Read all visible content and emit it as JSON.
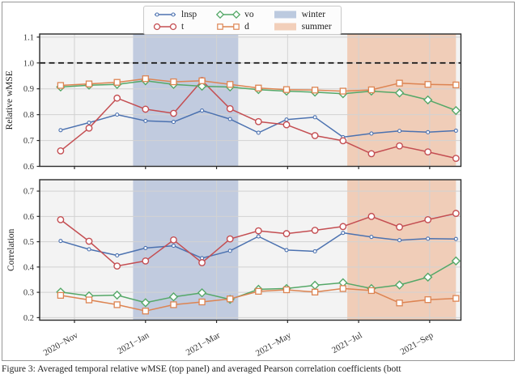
{
  "figure": {
    "caption": "Figure 3: Averaged temporal relative wMSE (top panel) and averaged Pearson correlation coefficients (bott"
  },
  "legend": {
    "entries": [
      {
        "label": "lnsp",
        "type": "line",
        "marker": "circle-small",
        "color": "#4c72b0"
      },
      {
        "label": "t",
        "type": "line",
        "marker": "circle",
        "color": "#c44e52"
      },
      {
        "label": "vo",
        "type": "line",
        "marker": "diamond",
        "color": "#55a868"
      },
      {
        "label": "d",
        "type": "line",
        "marker": "square",
        "color": "#dd8452"
      },
      {
        "label": "winter",
        "type": "patch",
        "marker": "patch",
        "color": "#bccadf"
      },
      {
        "label": "summer",
        "type": "patch",
        "marker": "patch",
        "color": "#f2cfba"
      }
    ]
  },
  "chart_data": {
    "type": "line",
    "x_unit": "months since 2020-11-01",
    "x": [
      -0.39,
      0.41,
      1.2,
      2.0,
      2.79,
      3.59,
      4.38,
      5.18,
      5.97,
      6.77,
      7.56,
      8.36,
      9.15,
      9.95,
      10.74
    ],
    "xlim": [
      -0.98,
      10.88
    ],
    "xticks": {
      "positions": [
        0,
        2,
        4,
        6,
        8,
        10
      ],
      "labels": [
        "2020−Nov",
        "2021−Jan",
        "2021−Mar",
        "2021−May",
        "2021−Jul",
        "2021−Sep"
      ]
    },
    "bands": [
      {
        "name": "winter",
        "from": 1.65,
        "to": 4.61,
        "color": "#c1cbdf"
      },
      {
        "name": "summer",
        "from": 7.68,
        "to": 10.74,
        "color": "#f0cdb8"
      }
    ],
    "panels": [
      {
        "ylabel": "Relative wMSE",
        "ylim": [
          0.6,
          1.112
        ],
        "yticks": [
          0.6,
          0.7,
          0.8,
          0.9,
          1.0,
          1.1
        ],
        "ref_line": {
          "y": 1.0,
          "style": "dashed",
          "color": "#111111"
        },
        "series": [
          {
            "name": "lnsp",
            "color": "#4c72b0",
            "marker": "circle-small",
            "values": [
              0.74,
              0.769,
              0.8,
              0.776,
              0.772,
              0.816,
              0.783,
              0.73,
              0.781,
              0.79,
              0.713,
              0.727,
              0.737,
              0.732,
              0.738
            ]
          },
          {
            "name": "t",
            "color": "#c44e52",
            "marker": "circle",
            "values": [
              0.66,
              0.748,
              0.864,
              0.821,
              0.805,
              0.932,
              0.823,
              0.773,
              0.761,
              0.719,
              0.699,
              0.649,
              0.679,
              0.656,
              0.631
            ]
          },
          {
            "name": "vo",
            "color": "#55a868",
            "marker": "diamond",
            "values": [
              0.907,
              0.914,
              0.917,
              0.931,
              0.917,
              0.91,
              0.907,
              0.897,
              0.891,
              0.887,
              0.881,
              0.891,
              0.884,
              0.857,
              0.816
            ]
          },
          {
            "name": "d",
            "color": "#dd8452",
            "marker": "square",
            "values": [
              0.913,
              0.919,
              0.925,
              0.939,
              0.927,
              0.931,
              0.917,
              0.903,
              0.897,
              0.895,
              0.891,
              0.896,
              0.922,
              0.917,
              0.915
            ]
          }
        ]
      },
      {
        "ylabel": "Correlation",
        "ylim": [
          0.19,
          0.745
        ],
        "yticks": [
          0.2,
          0.3,
          0.4,
          0.5,
          0.6,
          0.7
        ],
        "ref_line": null,
        "series": [
          {
            "name": "lnsp",
            "color": "#4c72b0",
            "marker": "circle-small",
            "values": [
              0.503,
              0.47,
              0.446,
              0.475,
              0.484,
              0.435,
              0.464,
              0.521,
              0.467,
              0.462,
              0.535,
              0.519,
              0.506,
              0.512,
              0.511
            ]
          },
          {
            "name": "t",
            "color": "#c44e52",
            "marker": "circle",
            "values": [
              0.587,
              0.502,
              0.404,
              0.424,
              0.507,
              0.417,
              0.511,
              0.543,
              0.532,
              0.545,
              0.56,
              0.6,
              0.558,
              0.587,
              0.612
            ]
          },
          {
            "name": "vo",
            "color": "#55a868",
            "marker": "diamond",
            "values": [
              0.301,
              0.286,
              0.289,
              0.259,
              0.282,
              0.298,
              0.272,
              0.312,
              0.315,
              0.328,
              0.338,
              0.315,
              0.329,
              0.36,
              0.424
            ]
          },
          {
            "name": "d",
            "color": "#dd8452",
            "marker": "square",
            "values": [
              0.288,
              0.27,
              0.251,
              0.226,
              0.251,
              0.262,
              0.274,
              0.304,
              0.31,
              0.301,
              0.315,
              0.307,
              0.258,
              0.271,
              0.276
            ]
          }
        ]
      }
    ]
  }
}
